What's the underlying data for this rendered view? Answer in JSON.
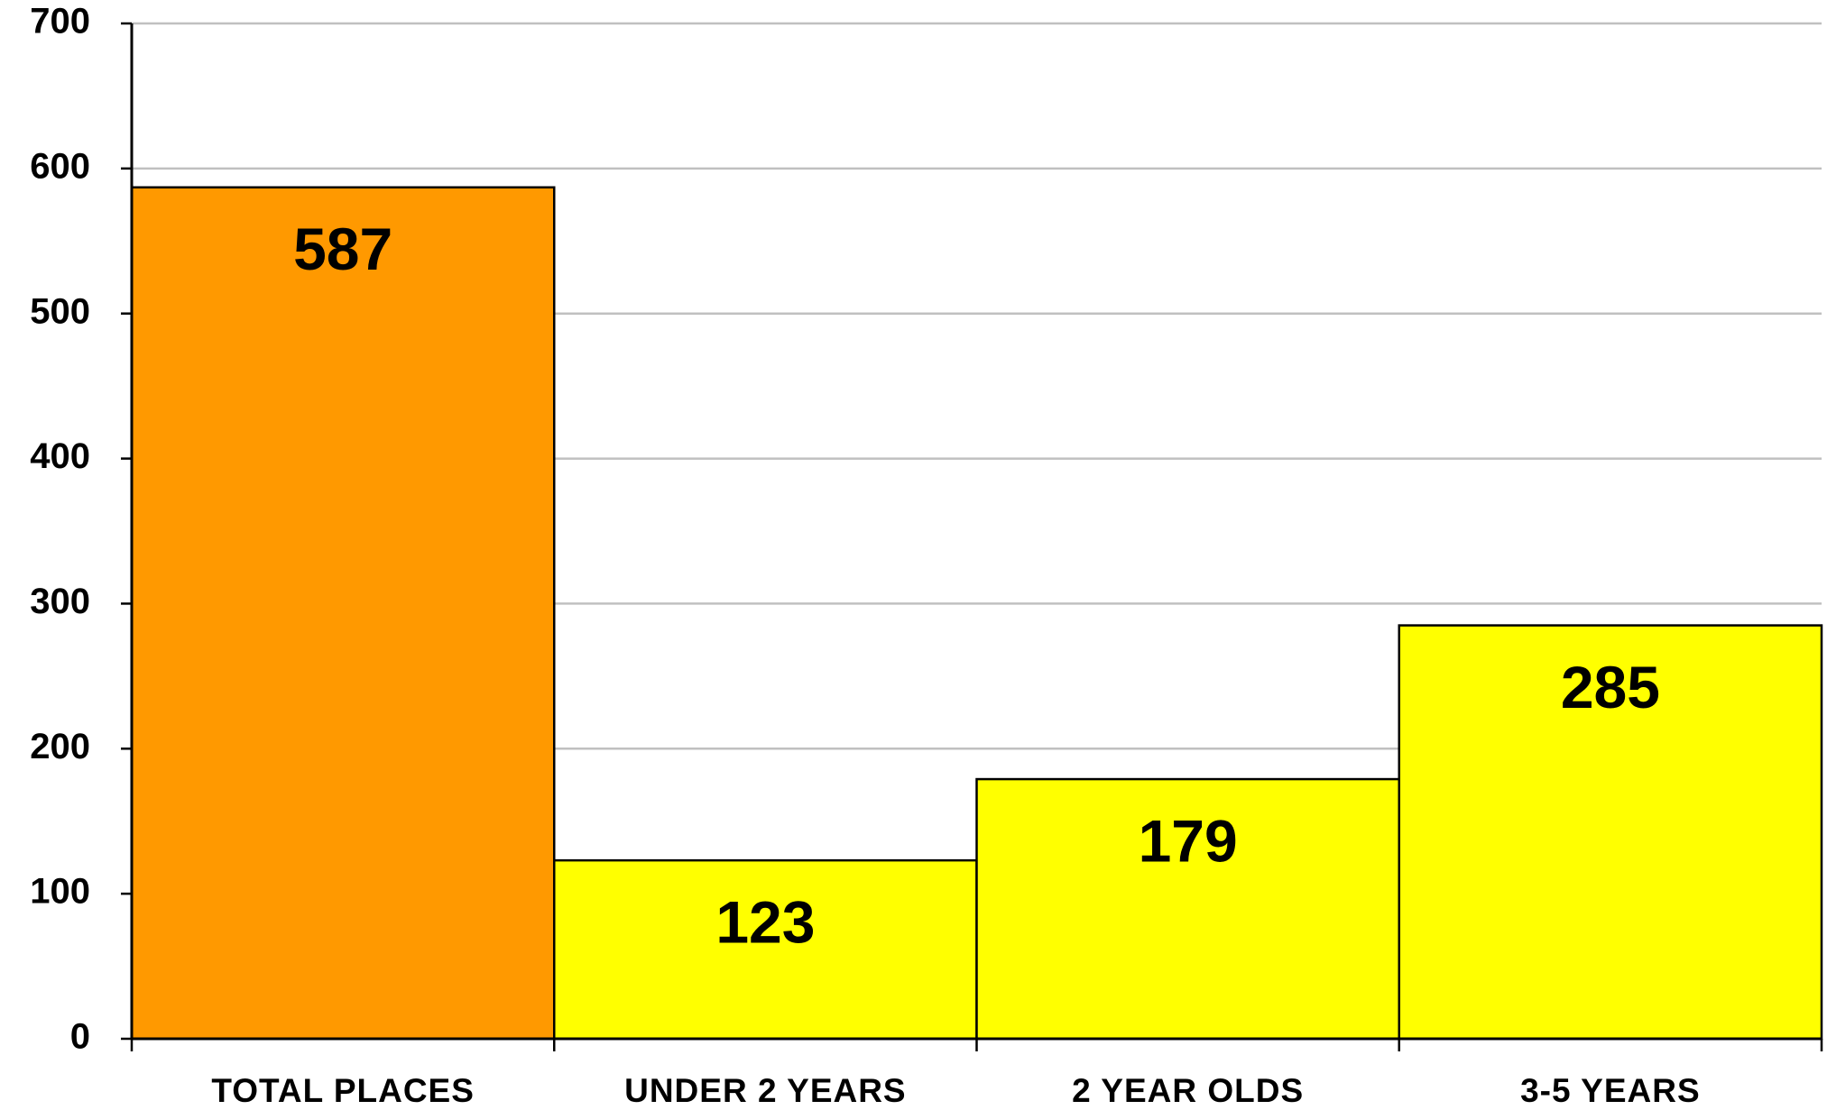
{
  "chart_data": {
    "type": "bar",
    "categories": [
      "TOTAL PLACES",
      "UNDER 2 YEARS",
      "2 YEAR OLDS",
      "3-5 YEARS"
    ],
    "values": [
      587,
      123,
      179,
      285
    ],
    "colors": [
      "#ff9900",
      "#ffff00",
      "#ffff00",
      "#ffff00"
    ],
    "ylim": [
      0,
      700
    ],
    "yticks": [
      0,
      100,
      200,
      300,
      400,
      500,
      600,
      700
    ],
    "grid": true
  }
}
